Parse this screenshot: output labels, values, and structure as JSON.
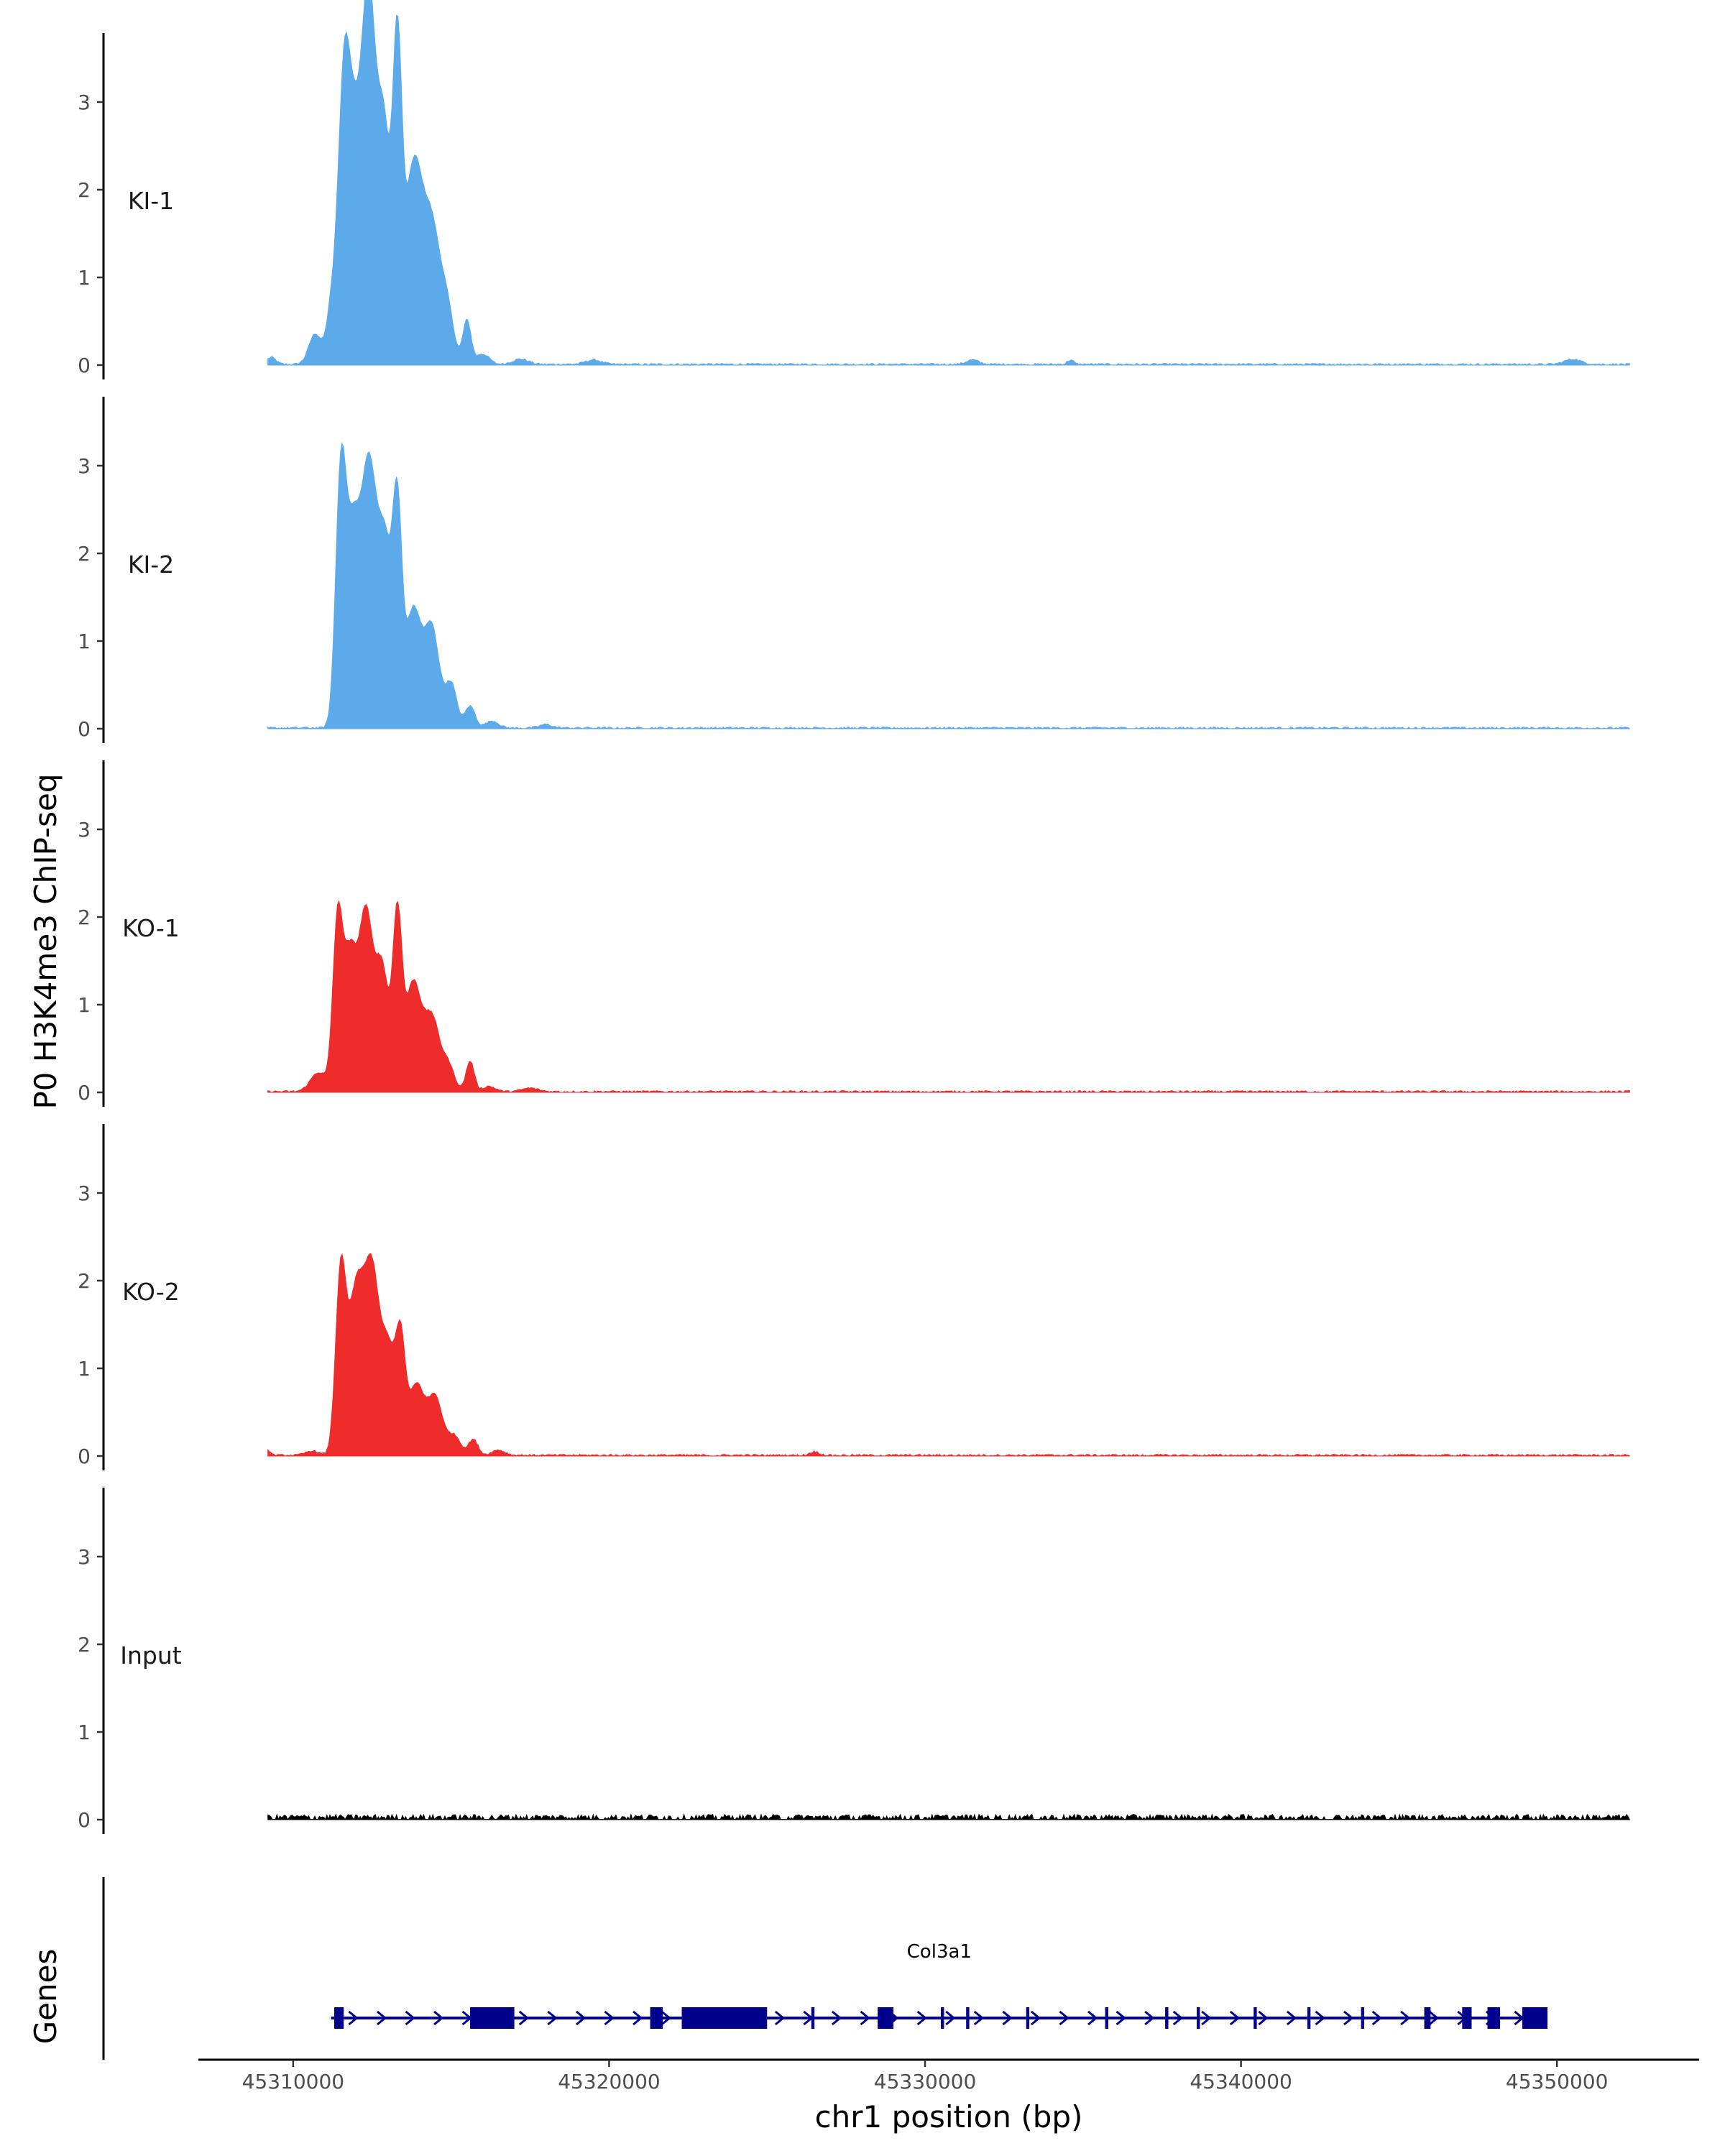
{
  "chart_data": {
    "type": "area",
    "title": "",
    "ylabel": "P0 H3K4me3 ChIP-seq",
    "xlabel": "chr1 position (bp)",
    "xlim": [
      45307000,
      45354500
    ],
    "ylim": [
      0,
      3.8
    ],
    "y_ticks": [
      0,
      1,
      2,
      3
    ],
    "x_ticks": [
      45310000,
      45320000,
      45330000,
      45340000,
      45350000
    ],
    "x_tick_labels": [
      "45310000",
      "45320000",
      "45330000",
      "45340000",
      "45350000"
    ],
    "signal_range": [
      45309200,
      45352300
    ],
    "tracks": [
      {
        "name": "KI-1",
        "color": "#5DAAEB",
        "peaks": [
          [
            45309300,
            0.08,
            150
          ],
          [
            45310700,
            0.35,
            200
          ],
          [
            45311200,
            0.55,
            150
          ],
          [
            45311600,
            2.9,
            190
          ],
          [
            45312000,
            2.55,
            250
          ],
          [
            45312400,
            3.35,
            190
          ],
          [
            45312850,
            2.8,
            230
          ],
          [
            45313300,
            3.15,
            140
          ],
          [
            45313800,
            2.2,
            280
          ],
          [
            45314400,
            1.5,
            280
          ],
          [
            45314900,
            0.5,
            200
          ],
          [
            45315500,
            0.5,
            130
          ],
          [
            45316000,
            0.12,
            200
          ],
          [
            45317200,
            0.06,
            250
          ],
          [
            45319500,
            0.05,
            250
          ],
          [
            45331500,
            0.05,
            200
          ],
          [
            45334600,
            0.05,
            100
          ],
          [
            45350500,
            0.06,
            250
          ]
        ],
        "noise": 0.02
      },
      {
        "name": "KI-2",
        "color": "#5DAAEB",
        "peaks": [
          [
            45311500,
            2.6,
            160
          ],
          [
            45311900,
            2.25,
            240
          ],
          [
            45312400,
            2.65,
            220
          ],
          [
            45312900,
            2.1,
            240
          ],
          [
            45313300,
            2.1,
            140
          ],
          [
            45313800,
            1.35,
            260
          ],
          [
            45314400,
            1.1,
            230
          ],
          [
            45315000,
            0.5,
            180
          ],
          [
            45315600,
            0.25,
            160
          ],
          [
            45316300,
            0.08,
            200
          ],
          [
            45318000,
            0.04,
            200
          ]
        ],
        "noise": 0.02
      },
      {
        "name": "KO-1",
        "color": "#EE2C2C",
        "peaks": [
          [
            45310800,
            0.22,
            250
          ],
          [
            45311400,
            1.75,
            150
          ],
          [
            45311800,
            1.6,
            230
          ],
          [
            45312300,
            1.85,
            200
          ],
          [
            45312800,
            1.45,
            230
          ],
          [
            45313300,
            1.85,
            140
          ],
          [
            45313800,
            1.25,
            260
          ],
          [
            45314400,
            0.8,
            230
          ],
          [
            45314900,
            0.3,
            200
          ],
          [
            45315600,
            0.35,
            130
          ],
          [
            45316200,
            0.06,
            200
          ],
          [
            45317500,
            0.04,
            250
          ]
        ],
        "noise": 0.02
      },
      {
        "name": "KO-2",
        "color": "#EE2C2C",
        "peaks": [
          [
            45309150,
            0.08,
            100
          ],
          [
            45310600,
            0.05,
            200
          ],
          [
            45311500,
            1.95,
            160
          ],
          [
            45312000,
            1.9,
            260
          ],
          [
            45312500,
            1.85,
            220
          ],
          [
            45313000,
            1.2,
            230
          ],
          [
            45313400,
            1.15,
            150
          ],
          [
            45313900,
            0.8,
            250
          ],
          [
            45314500,
            0.65,
            230
          ],
          [
            45315100,
            0.22,
            200
          ],
          [
            45315700,
            0.18,
            150
          ],
          [
            45316500,
            0.06,
            200
          ],
          [
            45326500,
            0.04,
            150
          ]
        ],
        "noise": 0.02
      },
      {
        "name": "Input",
        "color": "#000000",
        "peaks": [],
        "noise": 0.06
      }
    ],
    "gene_track": {
      "label": "Genes",
      "gene": "Col3a1",
      "color": "#00008B",
      "start": 45311200,
      "end": 45349700,
      "exons": [
        [
          45311300,
          45311600
        ],
        [
          45315600,
          45317000
        ],
        [
          45321300,
          45321700
        ],
        [
          45322300,
          45325000
        ],
        [
          45328500,
          45329000
        ],
        [
          45347000,
          45347300
        ],
        [
          45347800,
          45348200
        ],
        [
          45348900,
          45349700
        ],
        [
          45331300,
          45331400
        ],
        [
          45333200,
          45333300
        ],
        [
          45335700,
          45335800
        ],
        [
          45337600,
          45337700
        ],
        [
          45338600,
          45338700
        ],
        [
          45340400,
          45340500
        ],
        [
          45342100,
          45342200
        ],
        [
          45343800,
          45343900
        ],
        [
          45345800,
          45346000
        ],
        [
          45326400,
          45326500
        ],
        [
          45330500,
          45330600
        ]
      ]
    }
  }
}
